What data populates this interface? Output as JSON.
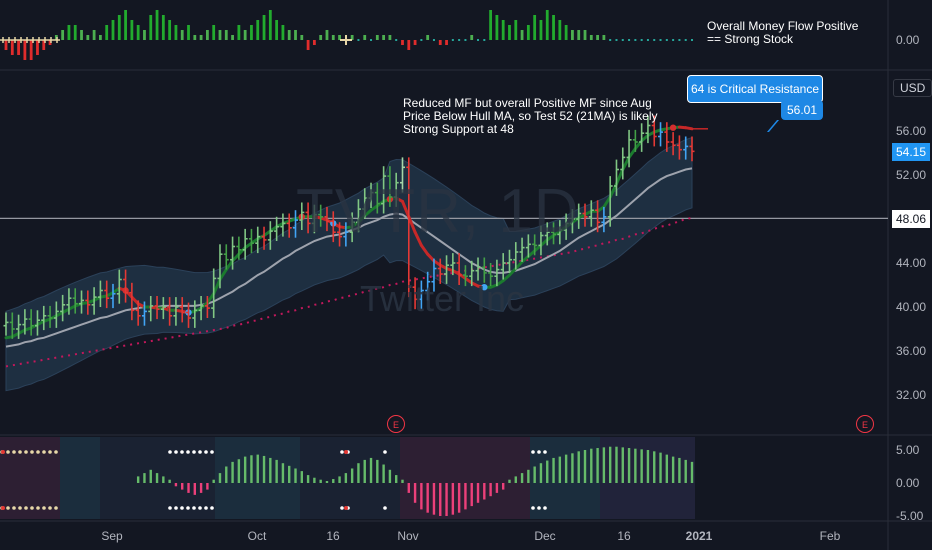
{
  "chart_data": {
    "type": "candlestick",
    "symbol_watermark": "TVTR, 1D",
    "name_watermark": "Twitter Inc",
    "currency": "USD",
    "x_tick_labels": [
      "Sep",
      "Oct",
      "16",
      "Nov",
      "Dec",
      "16",
      "2021",
      "Feb"
    ],
    "price_tick_labels": [
      "56.00",
      "52.00",
      "48.00",
      "44.00",
      "40.00",
      "36.00",
      "32.00"
    ],
    "price_range": [
      30,
      61
    ],
    "current_price": "54.15",
    "horizontal_line_label": "48.06",
    "mf_panel_label": "0.00",
    "osc_tick_labels": [
      "5.00",
      "0.00",
      "-5.00"
    ],
    "price_series": {
      "closes": [
        38.6,
        38.0,
        38.4,
        38.9,
        38.3,
        38.8,
        39.2,
        39.0,
        39.6,
        40.2,
        40.8,
        40.3,
        40.6,
        40.2,
        40.9,
        41.5,
        40.8,
        41.2,
        42.5,
        41.3,
        39.7,
        39.2,
        39.6,
        40.1,
        39.8,
        40.0,
        39.2,
        40.0,
        39.5,
        39.0,
        39.7,
        40.1,
        39.9,
        42.6,
        44.8,
        44.3,
        45.5,
        45.2,
        46.2,
        45.8,
        46.4,
        46.1,
        46.9,
        47.3,
        47.6,
        47.2,
        47.9,
        48.6,
        47.6,
        48.4,
        48.2,
        47.8,
        46.8,
        46.4,
        46.8,
        47.7,
        48.9,
        49.9,
        50.4,
        49.4,
        51.9,
        50.0,
        51.3,
        52.7,
        41.8,
        40.7,
        41.5,
        42.3,
        43.5,
        43.0,
        43.8,
        44.0,
        42.9,
        42.8,
        43.3,
        43.6,
        43.1,
        42.8,
        43.4,
        44.0,
        44.3,
        45.0,
        45.4,
        45.7,
        45.6,
        46.5,
        46.8,
        46.6,
        47.0,
        47.6,
        48.0,
        48.5,
        48.2,
        48.8,
        47.7,
        48.2,
        51.0,
        52.5,
        53.6,
        55.2,
        55.0,
        55.8,
        56.5,
        55.5,
        55.9,
        55.0,
        54.7,
        54.3,
        54.6,
        54.15
      ],
      "hull_ma": [
        37.2,
        37.3,
        37.6,
        37.9,
        38.1,
        38.4,
        38.7,
        38.9,
        39.2,
        39.5,
        39.8,
        40.1,
        40.3,
        40.4,
        40.6,
        40.9,
        41.0,
        41.3,
        41.7,
        41.5,
        40.9,
        40.3,
        40.0,
        40.0,
        39.9,
        39.9,
        39.7,
        39.7,
        39.6,
        39.5,
        39.6,
        39.9,
        40.4,
        41.2,
        42.5,
        43.4,
        44.2,
        44.8,
        45.4,
        45.8,
        46.2,
        46.5,
        46.9,
        47.3,
        47.6,
        47.8,
        48.0,
        48.2,
        48.2,
        48.2,
        48.1,
        47.9,
        47.6,
        47.3,
        47.2,
        47.3,
        47.7,
        48.3,
        48.8,
        49.2,
        49.6,
        49.8,
        49.9,
        49.6,
        48.2,
        46.8,
        45.6,
        44.8,
        44.2,
        43.8,
        43.5,
        43.3,
        43.0,
        42.6,
        42.2,
        41.9,
        41.8,
        41.8,
        42.0,
        42.4,
        42.9,
        43.5,
        44.1,
        44.6,
        45.1,
        45.6,
        46.1,
        46.5,
        46.9,
        47.3,
        47.7,
        48.1,
        48.4,
        48.7,
        48.7,
        49.1,
        50.0,
        51.2,
        52.5,
        53.6,
        54.4,
        55.1,
        55.6,
        55.9,
        56.1,
        56.2,
        56.3,
        56.35,
        56.3,
        56.2
      ],
      "ma21": [
        36.4,
        36.5,
        36.6,
        36.8,
        36.9,
        37.1,
        37.2,
        37.4,
        37.6,
        37.8,
        38.0,
        38.2,
        38.4,
        38.6,
        38.8,
        39.0,
        39.1,
        39.3,
        39.5,
        39.7,
        39.8,
        39.9,
        40.0,
        40.0,
        40.0,
        40.1,
        40.1,
        40.1,
        40.1,
        40.1,
        40.1,
        40.2,
        40.3,
        40.5,
        40.8,
        41.1,
        41.4,
        41.8,
        42.1,
        42.5,
        42.9,
        43.2,
        43.6,
        44.0,
        44.4,
        44.7,
        45.1,
        45.4,
        45.7,
        46.0,
        46.2,
        46.4,
        46.5,
        46.6,
        46.8,
        47.0,
        47.2,
        47.5,
        47.7,
        47.9,
        48.2,
        48.4,
        48.5,
        48.4,
        48.0,
        47.6,
        47.2,
        46.8,
        46.4,
        46.0,
        45.6,
        45.2,
        44.8,
        44.4,
        44.0,
        43.7,
        43.4,
        43.2,
        43.1,
        43.1,
        43.2,
        43.3,
        43.5,
        43.7,
        43.9,
        44.2,
        44.5,
        44.8,
        45.1,
        45.5,
        45.9,
        46.3,
        46.6,
        46.9,
        47.2,
        47.5,
        47.9,
        48.3,
        48.8,
        49.3,
        49.8,
        50.3,
        50.8,
        51.2,
        51.6,
        51.9,
        52.1,
        52.3,
        52.5,
        52.6
      ],
      "ma_long": [
        34.6,
        34.7,
        34.8,
        34.9,
        35.0,
        35.1,
        35.2,
        35.3,
        35.4,
        35.5,
        35.6,
        35.7,
        35.8,
        35.9,
        36.0,
        36.1,
        36.2,
        36.3,
        36.4,
        36.5,
        36.6,
        36.7,
        36.8,
        36.9,
        37.0,
        37.1,
        37.2,
        37.3,
        37.4,
        37.5,
        37.6,
        37.7,
        37.8,
        37.9,
        38.0,
        38.1,
        38.3,
        38.4,
        38.5,
        38.7,
        38.8,
        39.0,
        39.1,
        39.3,
        39.4,
        39.6,
        39.7,
        39.9,
        40.0,
        40.2,
        40.3,
        40.5,
        40.6,
        40.8,
        40.9,
        41.1,
        41.2,
        41.4,
        41.5,
        41.7,
        41.8,
        42.0,
        42.1,
        42.3,
        42.4,
        42.5,
        42.6,
        42.7,
        42.8,
        42.9,
        43.0,
        43.1,
        43.2,
        43.3,
        43.4,
        43.5,
        43.6,
        43.7,
        43.8,
        43.9,
        44.0,
        44.1,
        44.2,
        44.3,
        44.4,
        44.5,
        44.6,
        44.7,
        44.8,
        44.9,
        45.0,
        45.2,
        45.3,
        45.5,
        45.6,
        45.8,
        45.9,
        46.1,
        46.2,
        46.4,
        46.6,
        46.7,
        46.9,
        47.1,
        47.3,
        47.4,
        47.6,
        47.8,
        48.0,
        48.1
      ]
    },
    "money_flow": [
      -2,
      -3,
      -3,
      -4,
      -4,
      -3,
      -2,
      -1,
      1,
      2,
      3,
      3,
      2,
      1,
      2,
      1,
      3,
      4,
      5,
      6,
      4,
      3,
      2,
      5,
      6,
      5,
      4,
      3,
      2,
      3,
      1,
      1,
      2,
      3,
      2,
      2,
      1,
      3,
      2,
      3,
      4,
      5,
      6,
      4,
      3,
      2,
      2,
      1,
      -2,
      -1,
      1,
      2,
      1,
      1,
      0,
      1,
      0,
      1,
      0,
      1,
      1,
      1,
      0,
      -1,
      -2,
      -1,
      0,
      1,
      0,
      -1,
      -1,
      0,
      0,
      0,
      1,
      0,
      0,
      6,
      5,
      4,
      3,
      4,
      2,
      3,
      5,
      4,
      6,
      5,
      4,
      3,
      2,
      2,
      2,
      1,
      1,
      1,
      0,
      0,
      0,
      0,
      0,
      0,
      0,
      0,
      0,
      0,
      0,
      0,
      0,
      0
    ],
    "oscillator": [
      0,
      0,
      0,
      0,
      0,
      0,
      0,
      0,
      0,
      0,
      0,
      0,
      0,
      0,
      0,
      0,
      0,
      0,
      0,
      0,
      0,
      1,
      1.5,
      2,
      1.5,
      1,
      0.5,
      -0.5,
      -1,
      -1.5,
      -1.8,
      -1.5,
      -1,
      0.5,
      1.5,
      2.5,
      3.2,
      3.6,
      4,
      4.2,
      4.3,
      4.1,
      3.8,
      3.5,
      3,
      2.6,
      2.2,
      1.8,
      1.2,
      0.8,
      0.5,
      0.3,
      0.6,
      1,
      1.5,
      2.2,
      3,
      3.5,
      3.8,
      3.5,
      2.8,
      2,
      1.2,
      0.5,
      -1.5,
      -3,
      -4,
      -4.5,
      -4.8,
      -5,
      -5,
      -4.8,
      -4.5,
      -4,
      -3.5,
      -3,
      -2.5,
      -2,
      -1.5,
      -1,
      0.5,
      1,
      1.5,
      2,
      2.5,
      3,
      3.4,
      3.8,
      4,
      4.3,
      4.5,
      4.8,
      5,
      5.2,
      5.3,
      5.4,
      5.5,
      5.5,
      5.4,
      5.3,
      5.2,
      5.1,
      5,
      4.8,
      4.6,
      4.3,
      4,
      3.8,
      3.5,
      3.2
    ]
  },
  "annotations": {
    "money_flow_note": "Overall Money Flow Positive\n== Strong Stock",
    "main_note": "Reduced MF but overall Positive MF since Aug\nPrice Below Hull MA, so Test 52 (21MA) is likely\nStrong Support at 48",
    "callout_resistance": "64 is Critical Resistance",
    "callout_price": "56.01"
  },
  "earnings_marker": "E",
  "colors": {
    "background": "#131722",
    "up_strong": "#26a69a",
    "bar_green": "#66bb6a",
    "bar_blue": "#42a5f5",
    "bar_red": "#ef5350",
    "cloud": "#2a3d52",
    "callout": "#1e88e5"
  }
}
